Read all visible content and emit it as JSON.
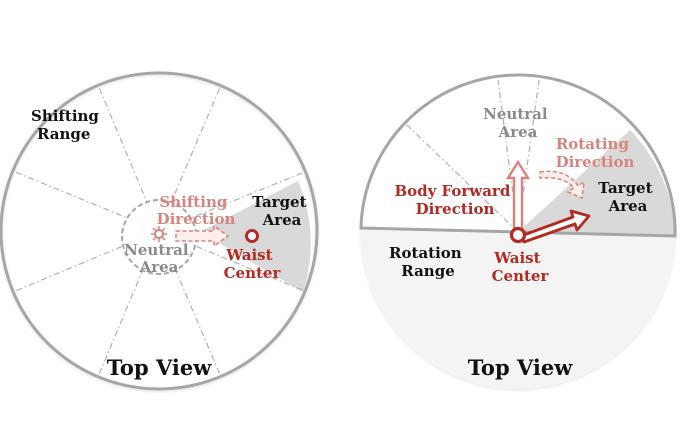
{
  "left_panel": {
    "labels": {
      "shifting_range": [
        "Shifting",
        "Range"
      ],
      "target_area": [
        "Target",
        "Area"
      ],
      "shifting_direction": [
        "Shifting",
        "Direction"
      ],
      "neutral_area": [
        "Neutral",
        "Area"
      ],
      "waist_center": [
        "Waist",
        "Center"
      ]
    },
    "view_title": "Top View"
  },
  "right_panel": {
    "labels": {
      "neutral_area": [
        "Neutral",
        "Area"
      ],
      "rotating_direction": [
        "Rotating",
        "Direction"
      ],
      "body_forward_direction": [
        "Body Forward",
        "Direction"
      ],
      "target_area": [
        "Target",
        "Area"
      ],
      "rotation_range": [
        "Rotation",
        "Range"
      ],
      "waist_center": [
        "Waist",
        "Center"
      ]
    },
    "view_title": "Top View"
  },
  "colors": {
    "outline": "#a6a6a6",
    "dashed_line": "#b0b0b0",
    "target_fill": "#d9d9d9",
    "accent_dark_red": "#b22a22",
    "accent_light_red": "#d9837e",
    "neutral_gray_text": "#8a8a8a",
    "label_black": "#111111"
  }
}
